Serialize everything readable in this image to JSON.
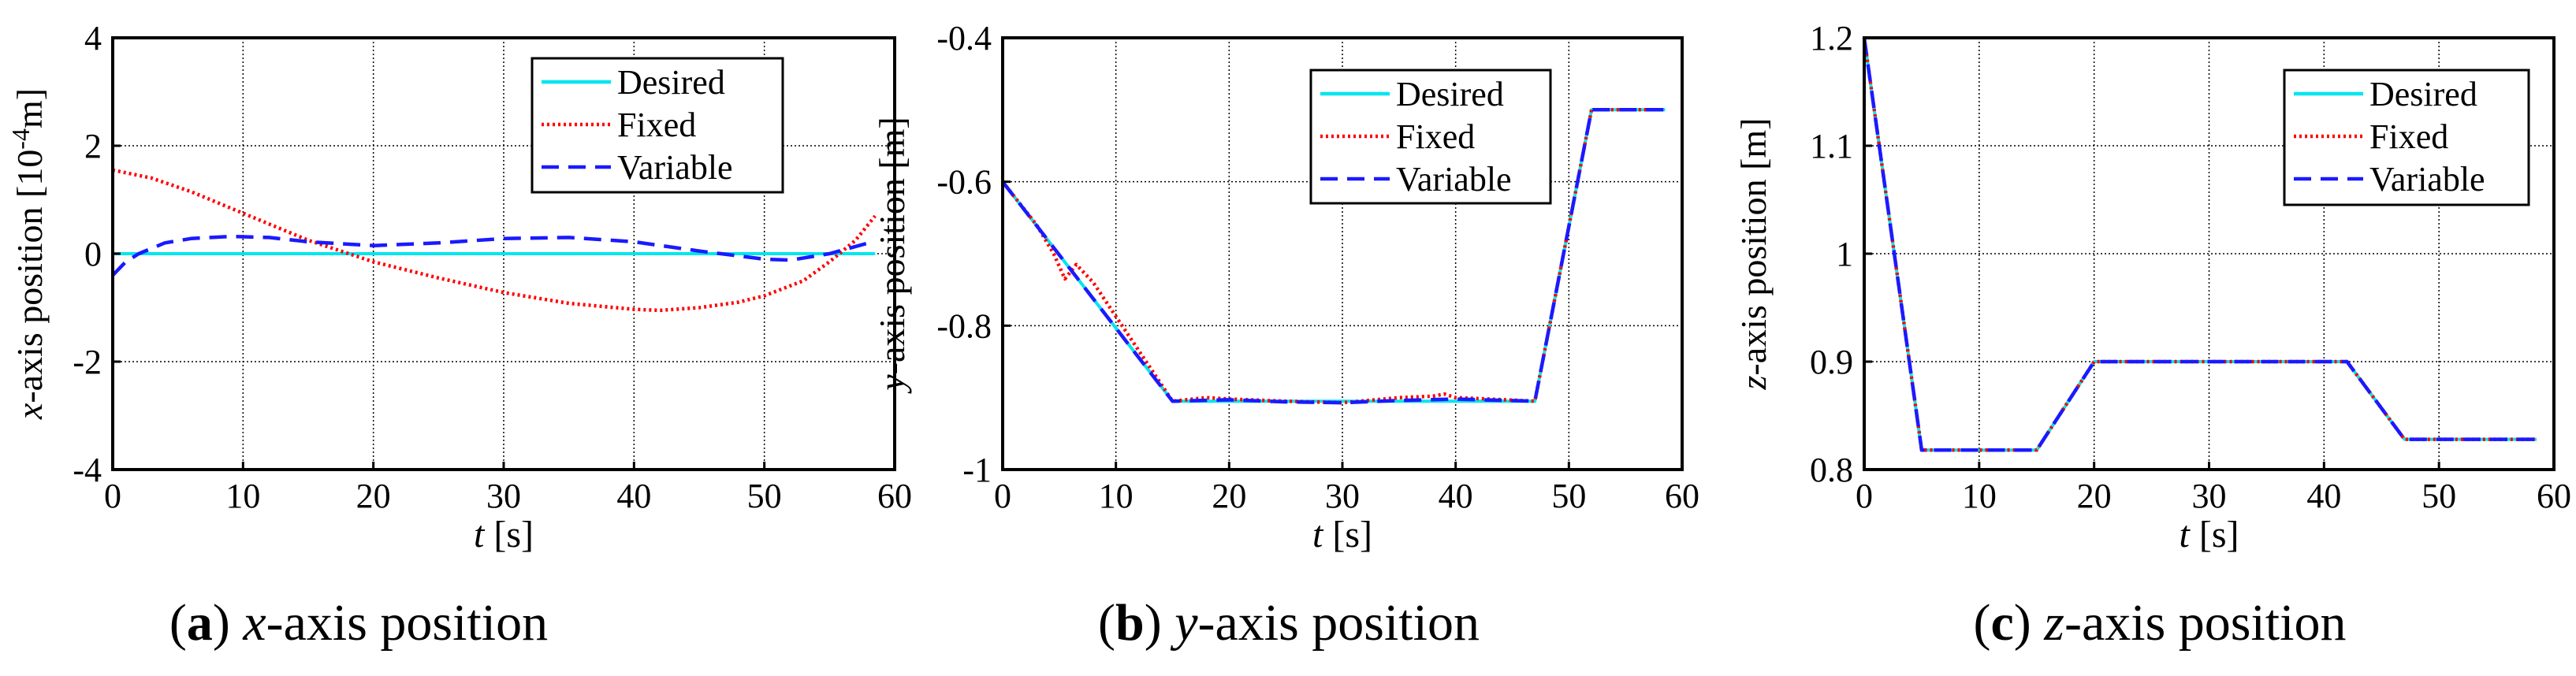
{
  "colors": {
    "desired": "#00e5ee",
    "fixed": "#ff0000",
    "variable": "#1a1aff"
  },
  "chart_data": [
    {
      "type": "line",
      "caption": {
        "letter": "(a)",
        "var": "x",
        "rest": "-axis position"
      },
      "xlabel": {
        "var": "t",
        "rest": " [s]"
      },
      "ylabel": {
        "var": "x",
        "rest": "-axis position [10",
        "sup": "-4",
        "unit": "m]"
      },
      "xlim": [
        0,
        60
      ],
      "ylim": [
        -4,
        4
      ],
      "xticks": [
        0,
        10,
        20,
        30,
        40,
        50,
        60
      ],
      "yticks": [
        -4,
        -2,
        0,
        2,
        4
      ],
      "xtick_labels": [
        "0",
        "10",
        "20",
        "30",
        "40",
        "50",
        "60"
      ],
      "ytick_labels": [
        "-4",
        "-2",
        "0",
        "2",
        "4"
      ],
      "grid": true,
      "legend": {
        "position": "top-right",
        "entries": [
          "Desired",
          "Fixed",
          "Variable"
        ]
      },
      "series": [
        {
          "name": "Desired",
          "style": "solid",
          "x": [
            0,
            58.5
          ],
          "y": [
            0,
            0
          ]
        },
        {
          "name": "Fixed",
          "style": "dotted",
          "x": [
            0,
            3,
            6,
            10,
            15,
            20,
            25,
            30,
            35,
            40,
            42,
            45,
            48,
            50,
            53,
            55,
            57,
            58.5
          ],
          "y": [
            1.55,
            1.4,
            1.15,
            0.75,
            0.25,
            -0.15,
            -0.45,
            -0.72,
            -0.92,
            -1.03,
            -1.05,
            -1.0,
            -0.9,
            -0.78,
            -0.5,
            -0.15,
            0.25,
            0.7
          ]
        },
        {
          "name": "Variable",
          "style": "dashed",
          "x": [
            0,
            1,
            2,
            4,
            6,
            9,
            12,
            15,
            20,
            25,
            30,
            35,
            40,
            45,
            50,
            52,
            55,
            58
          ],
          "y": [
            -0.4,
            -0.15,
            0.0,
            0.2,
            0.28,
            0.32,
            0.3,
            0.22,
            0.15,
            0.2,
            0.28,
            0.3,
            0.22,
            0.05,
            -0.1,
            -0.12,
            0.0,
            0.2
          ]
        }
      ]
    },
    {
      "type": "line",
      "caption": {
        "letter": "(b)",
        "var": "y",
        "rest": "-axis position"
      },
      "xlabel": {
        "var": "t",
        "rest": " [s]"
      },
      "ylabel": {
        "var": "y",
        "rest": "-axis position [m]",
        "sup": "",
        "unit": ""
      },
      "xlim": [
        0,
        60
      ],
      "ylim": [
        -1,
        -0.4
      ],
      "xticks": [
        0,
        10,
        20,
        30,
        40,
        50,
        60
      ],
      "yticks": [
        -1,
        -0.8,
        -0.6,
        -0.4
      ],
      "xtick_labels": [
        "0",
        "10",
        "20",
        "30",
        "40",
        "50",
        "60"
      ],
      "ytick_labels": [
        "-1",
        "-0.8",
        "-0.6",
        "-0.4"
      ],
      "grid": true,
      "legend": {
        "position": "top-right",
        "entries": [
          "Desired",
          "Fixed",
          "Variable"
        ]
      },
      "series": [
        {
          "name": "Desired",
          "style": "solid",
          "x": [
            0,
            15,
            47,
            52,
            58.5
          ],
          "y": [
            -0.6,
            -0.905,
            -0.905,
            -0.5,
            -0.5
          ]
        },
        {
          "name": "Fixed",
          "style": "dotted",
          "x": [
            0,
            3,
            4.5,
            5.5,
            6.5,
            8,
            15,
            18,
            20,
            25,
            30,
            35,
            38,
            39,
            40,
            43,
            47,
            52,
            58.5
          ],
          "y": [
            -0.6,
            -0.66,
            -0.7,
            -0.735,
            -0.715,
            -0.74,
            -0.905,
            -0.9,
            -0.902,
            -0.905,
            -0.907,
            -0.9,
            -0.898,
            -0.895,
            -0.9,
            -0.902,
            -0.905,
            -0.5,
            -0.5
          ]
        },
        {
          "name": "Variable",
          "style": "dashed",
          "x": [
            0,
            15,
            20,
            25,
            30,
            35,
            40,
            47,
            52,
            58.5
          ],
          "y": [
            -0.6,
            -0.905,
            -0.903,
            -0.906,
            -0.907,
            -0.904,
            -0.902,
            -0.905,
            -0.5,
            -0.5
          ]
        }
      ]
    },
    {
      "type": "line",
      "caption": {
        "letter": "(c)",
        "var": "z",
        "rest": "-axis position"
      },
      "xlabel": {
        "var": "t",
        "rest": " [s]"
      },
      "ylabel": {
        "var": "z",
        "rest": "-axis position [m]",
        "sup": "",
        "unit": ""
      },
      "xlim": [
        0,
        60
      ],
      "ylim": [
        0.8,
        1.2
      ],
      "xticks": [
        0,
        10,
        20,
        30,
        40,
        50,
        60
      ],
      "yticks": [
        0.8,
        0.9,
        1.0,
        1.1,
        1.2
      ],
      "xtick_labels": [
        "0",
        "10",
        "20",
        "30",
        "40",
        "50",
        "60"
      ],
      "ytick_labels": [
        "0.8",
        "0.9",
        "1",
        "1.1",
        "1.2"
      ],
      "grid": true,
      "legend": {
        "position": "top-right",
        "entries": [
          "Desired",
          "Fixed",
          "Variable"
        ]
      },
      "series": [
        {
          "name": "Desired",
          "style": "solid",
          "x": [
            0,
            5,
            15,
            20,
            42,
            47,
            58.5
          ],
          "y": [
            1.2,
            0.818,
            0.818,
            0.9,
            0.9,
            0.828,
            0.828
          ]
        },
        {
          "name": "Fixed",
          "style": "dotted",
          "x": [
            0,
            5,
            15,
            20,
            42,
            47,
            58.5
          ],
          "y": [
            1.2,
            0.818,
            0.818,
            0.9,
            0.9,
            0.828,
            0.828
          ]
        },
        {
          "name": "Variable",
          "style": "dashed",
          "x": [
            0,
            5,
            15,
            20,
            42,
            47,
            58.5
          ],
          "y": [
            1.2,
            0.818,
            0.818,
            0.9,
            0.9,
            0.828,
            0.828
          ]
        }
      ]
    }
  ]
}
